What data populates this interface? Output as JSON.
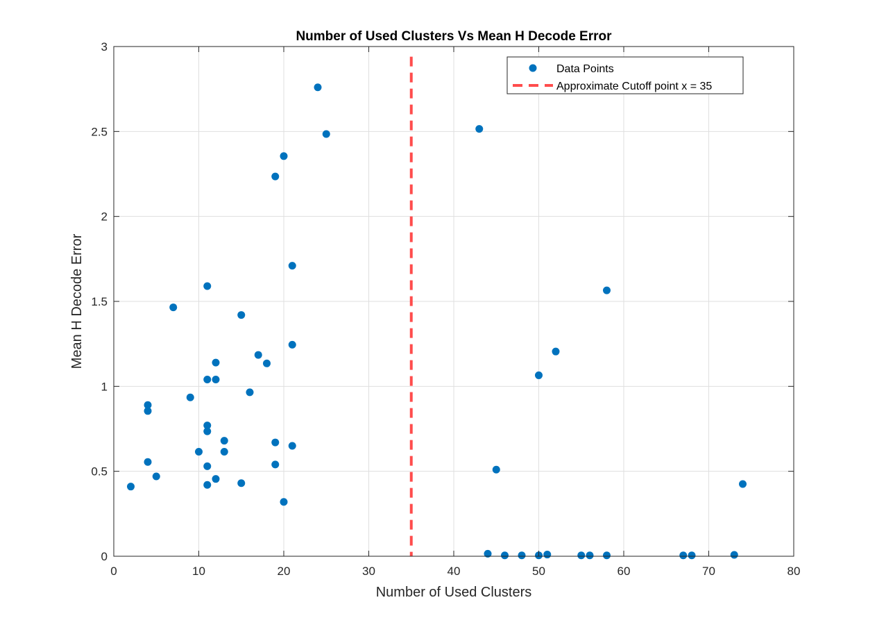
{
  "chart_data": {
    "type": "scatter",
    "title": "Number of Used Clusters Vs Mean H Decode Error",
    "xlabel": "Number of Used Clusters",
    "ylabel": "Mean H Decode Error",
    "xlim": [
      0,
      80
    ],
    "ylim": [
      0,
      3
    ],
    "xticks": [
      0,
      10,
      20,
      30,
      40,
      50,
      60,
      70,
      80
    ],
    "yticks": [
      0,
      0.5,
      1,
      1.5,
      2,
      2.5,
      3
    ],
    "xtick_labels": [
      "0",
      "10",
      "20",
      "30",
      "40",
      "50",
      "60",
      "70",
      "80"
    ],
    "ytick_labels": [
      "0",
      "0.5",
      "1",
      "1.5",
      "2",
      "2.5",
      "3"
    ],
    "grid": true,
    "legend_position": "top-right",
    "series": [
      {
        "name": "Data Points",
        "marker": "circle",
        "color": "#0072BD",
        "points": [
          [
            2,
            0.41
          ],
          [
            4,
            0.89
          ],
          [
            4,
            0.855
          ],
          [
            4,
            0.555
          ],
          [
            5,
            0.47
          ],
          [
            7,
            1.465
          ],
          [
            9,
            0.935
          ],
          [
            10,
            0.615
          ],
          [
            11,
            1.59
          ],
          [
            11,
            1.04
          ],
          [
            11,
            0.77
          ],
          [
            11,
            0.735
          ],
          [
            11,
            0.53
          ],
          [
            11,
            0.42
          ],
          [
            12,
            1.14
          ],
          [
            12,
            1.04
          ],
          [
            12,
            0.455
          ],
          [
            13,
            0.68
          ],
          [
            13,
            0.615
          ],
          [
            15,
            1.42
          ],
          [
            15,
            0.43
          ],
          [
            16,
            0.965
          ],
          [
            17,
            1.185
          ],
          [
            18,
            1.135
          ],
          [
            19,
            2.235
          ],
          [
            19,
            0.67
          ],
          [
            19,
            0.54
          ],
          [
            20,
            2.355
          ],
          [
            20,
            0.32
          ],
          [
            21,
            1.71
          ],
          [
            21,
            1.245
          ],
          [
            21,
            0.65
          ],
          [
            24,
            2.76
          ],
          [
            25,
            2.485
          ],
          [
            43,
            2.515
          ],
          [
            44,
            0.015
          ],
          [
            45,
            0.51
          ],
          [
            46,
            0.005
          ],
          [
            48,
            0.005
          ],
          [
            50,
            1.065
          ],
          [
            50,
            0.005
          ],
          [
            51,
            0.01
          ],
          [
            52,
            1.205
          ],
          [
            55,
            0.005
          ],
          [
            56,
            0.005
          ],
          [
            58,
            1.565
          ],
          [
            58,
            0.005
          ],
          [
            67,
            0.005
          ],
          [
            68,
            0.005
          ],
          [
            73,
            0.008
          ],
          [
            74,
            0.425
          ]
        ]
      },
      {
        "name": "Approximate Cutoff point x = 35",
        "type": "vline",
        "x": 35,
        "style": "dashed",
        "color": "#FF4D4D"
      }
    ]
  }
}
